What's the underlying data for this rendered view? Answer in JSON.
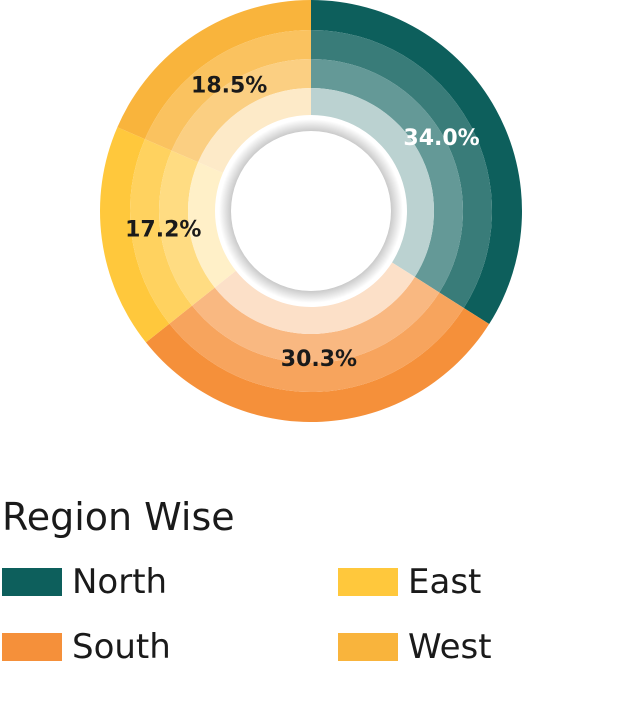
{
  "chart_data": {
    "type": "pie",
    "variant": "donut",
    "legend_title": "Region Wise",
    "legend_placement": "bottom",
    "categories": [
      "North",
      "South",
      "East",
      "West"
    ],
    "values": [
      34.0,
      30.3,
      17.2,
      18.5
    ],
    "labels": [
      "34.0%",
      "30.3%",
      "17.2%",
      "18.5%"
    ],
    "colors": [
      "#0d5f5c",
      "#f5903a",
      "#ffc83c",
      "#f9b43c"
    ]
  }
}
